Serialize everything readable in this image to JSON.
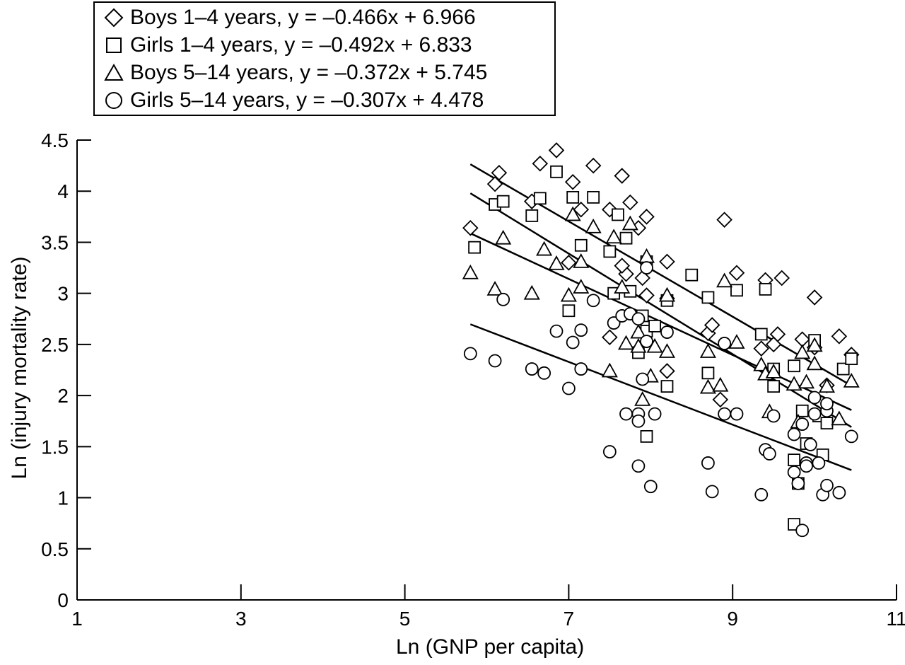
{
  "chart_data": {
    "type": "scatter",
    "xlabel": "Ln (GNP per capita)",
    "ylabel": "Ln (injury mortality rate)",
    "xlim": [
      1,
      11
    ],
    "ylim": [
      0,
      4.5
    ],
    "xticks": [
      1,
      3,
      5,
      7,
      9,
      11
    ],
    "yticks": [
      0,
      0.5,
      1,
      1.5,
      2,
      2.5,
      3,
      3.5,
      4,
      4.5
    ],
    "ytick_labels": [
      "0",
      "0.5",
      "1",
      "1.5",
      "2",
      "2.5",
      "3",
      "3.5",
      "4",
      "4.5"
    ],
    "grid": false,
    "legend_position": "top-left",
    "series": [
      {
        "name": "Boys 1–4 years, y = –0.466x + 6.966",
        "marker": "diamond",
        "fit": {
          "slope": -0.466,
          "intercept": 6.966,
          "x_range": [
            5.8,
            10.45
          ]
        },
        "points": [
          [
            5.8,
            3.64
          ],
          [
            6.1,
            4.07
          ],
          [
            6.15,
            4.18
          ],
          [
            6.55,
            3.9
          ],
          [
            6.65,
            4.27
          ],
          [
            6.85,
            4.4
          ],
          [
            7.0,
            3.3
          ],
          [
            7.05,
            4.09
          ],
          [
            7.15,
            3.82
          ],
          [
            7.3,
            4.25
          ],
          [
            7.5,
            3.82
          ],
          [
            7.65,
            4.15
          ],
          [
            7.7,
            3.19
          ],
          [
            7.75,
            3.89
          ],
          [
            7.85,
            3.64
          ],
          [
            7.95,
            3.75
          ],
          [
            7.65,
            3.27
          ],
          [
            7.5,
            2.57
          ],
          [
            7.9,
            3.15
          ],
          [
            8.2,
            3.31
          ],
          [
            7.95,
            2.98
          ],
          [
            8.2,
            2.24
          ],
          [
            8.2,
            2.95
          ],
          [
            8.7,
            2.61
          ],
          [
            8.75,
            2.69
          ],
          [
            8.85,
            1.96
          ],
          [
            8.9,
            3.72
          ],
          [
            9.05,
            3.2
          ],
          [
            9.35,
            2.46
          ],
          [
            9.4,
            3.13
          ],
          [
            9.5,
            2.5
          ],
          [
            9.55,
            2.6
          ],
          [
            9.6,
            3.15
          ],
          [
            9.85,
            2.55
          ],
          [
            10.0,
            2.96
          ],
          [
            10.0,
            2.47
          ],
          [
            10.15,
            2.1
          ],
          [
            10.3,
            2.58
          ],
          [
            10.45,
            2.4
          ]
        ]
      },
      {
        "name": "Girls 1–4 years, y = –0.492x + 6.833",
        "marker": "square",
        "fit": {
          "slope": -0.492,
          "intercept": 6.833,
          "x_range": [
            5.8,
            10.45
          ]
        },
        "points": [
          [
            5.85,
            3.45
          ],
          [
            6.1,
            3.87
          ],
          [
            6.2,
            3.9
          ],
          [
            6.55,
            3.76
          ],
          [
            6.65,
            3.93
          ],
          [
            6.85,
            4.19
          ],
          [
            7.05,
            3.94
          ],
          [
            7.0,
            2.83
          ],
          [
            7.15,
            3.47
          ],
          [
            7.3,
            3.94
          ],
          [
            7.5,
            3.41
          ],
          [
            7.6,
            3.77
          ],
          [
            7.7,
            3.54
          ],
          [
            7.55,
            3.0
          ],
          [
            7.75,
            3.02
          ],
          [
            7.85,
            2.42
          ],
          [
            7.9,
            2.78
          ],
          [
            7.95,
            3.31
          ],
          [
            7.95,
            2.63
          ],
          [
            8.05,
            2.68
          ],
          [
            7.95,
            1.6
          ],
          [
            8.2,
            2.93
          ],
          [
            8.2,
            2.09
          ],
          [
            8.5,
            3.18
          ],
          [
            8.7,
            2.96
          ],
          [
            8.7,
            2.22
          ],
          [
            9.05,
            3.03
          ],
          [
            9.35,
            2.6
          ],
          [
            9.4,
            3.04
          ],
          [
            9.5,
            2.26
          ],
          [
            9.5,
            2.09
          ],
          [
            9.75,
            2.29
          ],
          [
            9.75,
            1.37
          ],
          [
            9.8,
            1.14
          ],
          [
            9.85,
            1.85
          ],
          [
            9.9,
            1.53
          ],
          [
            9.75,
            0.74
          ],
          [
            10.0,
            2.54
          ],
          [
            10.05,
            1.8
          ],
          [
            10.15,
            1.73
          ],
          [
            10.1,
            1.42
          ],
          [
            10.35,
            2.26
          ],
          [
            10.45,
            2.36
          ]
        ]
      },
      {
        "name": "Boys 5–14 years, y = –0.372x + 5.745",
        "marker": "triangle",
        "fit": {
          "slope": -0.372,
          "intercept": 5.745,
          "x_range": [
            5.8,
            10.45
          ]
        },
        "points": [
          [
            5.8,
            3.2
          ],
          [
            6.1,
            3.04
          ],
          [
            6.2,
            3.54
          ],
          [
            6.55,
            3.0
          ],
          [
            6.7,
            3.43
          ],
          [
            6.85,
            3.29
          ],
          [
            7.0,
            2.98
          ],
          [
            7.05,
            3.77
          ],
          [
            7.15,
            3.06
          ],
          [
            7.15,
            3.31
          ],
          [
            7.3,
            3.65
          ],
          [
            7.5,
            2.24
          ],
          [
            7.55,
            3.55
          ],
          [
            7.65,
            3.06
          ],
          [
            7.7,
            2.51
          ],
          [
            7.75,
            3.68
          ],
          [
            7.85,
            2.62
          ],
          [
            7.85,
            2.48
          ],
          [
            7.9,
            1.96
          ],
          [
            7.95,
            3.36
          ],
          [
            8.0,
            2.19
          ],
          [
            8.05,
            2.48
          ],
          [
            8.2,
            2.43
          ],
          [
            8.2,
            2.98
          ],
          [
            8.7,
            2.43
          ],
          [
            8.7,
            2.08
          ],
          [
            8.85,
            2.1
          ],
          [
            8.9,
            3.12
          ],
          [
            9.05,
            2.52
          ],
          [
            9.35,
            2.3
          ],
          [
            9.4,
            2.21
          ],
          [
            9.45,
            1.84
          ],
          [
            9.5,
            2.23
          ],
          [
            9.75,
            2.11
          ],
          [
            9.8,
            1.74
          ],
          [
            9.85,
            2.42
          ],
          [
            9.9,
            2.13
          ],
          [
            10.0,
            2.31
          ],
          [
            10.0,
            2.49
          ],
          [
            10.15,
            2.09
          ],
          [
            10.3,
            1.77
          ],
          [
            10.45,
            2.14
          ]
        ]
      },
      {
        "name": "Girls 5–14 years, y = –0.307x + 4.478",
        "marker": "circle",
        "fit": {
          "slope": -0.307,
          "intercept": 4.478,
          "x_range": [
            5.8,
            10.45
          ]
        },
        "points": [
          [
            5.8,
            2.41
          ],
          [
            6.1,
            2.34
          ],
          [
            6.2,
            2.94
          ],
          [
            6.55,
            2.26
          ],
          [
            6.7,
            2.22
          ],
          [
            6.85,
            2.63
          ],
          [
            7.0,
            2.07
          ],
          [
            7.05,
            2.52
          ],
          [
            7.15,
            2.26
          ],
          [
            7.15,
            2.64
          ],
          [
            7.3,
            2.93
          ],
          [
            7.5,
            1.45
          ],
          [
            7.55,
            2.71
          ],
          [
            7.65,
            2.78
          ],
          [
            7.7,
            1.82
          ],
          [
            7.75,
            2.8
          ],
          [
            7.85,
            2.75
          ],
          [
            7.85,
            1.82
          ],
          [
            7.85,
            1.75
          ],
          [
            7.85,
            1.31
          ],
          [
            7.9,
            2.16
          ],
          [
            7.95,
            3.25
          ],
          [
            7.95,
            2.53
          ],
          [
            8.0,
            1.11
          ],
          [
            8.05,
            1.82
          ],
          [
            8.2,
            2.62
          ],
          [
            8.7,
            1.34
          ],
          [
            8.75,
            1.06
          ],
          [
            8.9,
            1.82
          ],
          [
            8.9,
            2.51
          ],
          [
            9.05,
            1.82
          ],
          [
            9.35,
            1.03
          ],
          [
            9.4,
            1.47
          ],
          [
            9.45,
            1.43
          ],
          [
            9.5,
            1.8
          ],
          [
            9.75,
            1.62
          ],
          [
            9.75,
            1.25
          ],
          [
            9.8,
            1.14
          ],
          [
            9.85,
            0.68
          ],
          [
            9.85,
            1.72
          ],
          [
            9.9,
            1.34
          ],
          [
            9.9,
            1.31
          ],
          [
            9.95,
            1.52
          ],
          [
            10.0,
            1.98
          ],
          [
            10.0,
            1.82
          ],
          [
            10.05,
            1.34
          ],
          [
            10.1,
            1.03
          ],
          [
            10.15,
            1.85
          ],
          [
            10.15,
            1.92
          ],
          [
            10.15,
            1.12
          ],
          [
            10.3,
            1.05
          ],
          [
            10.45,
            1.6
          ]
        ]
      }
    ]
  }
}
